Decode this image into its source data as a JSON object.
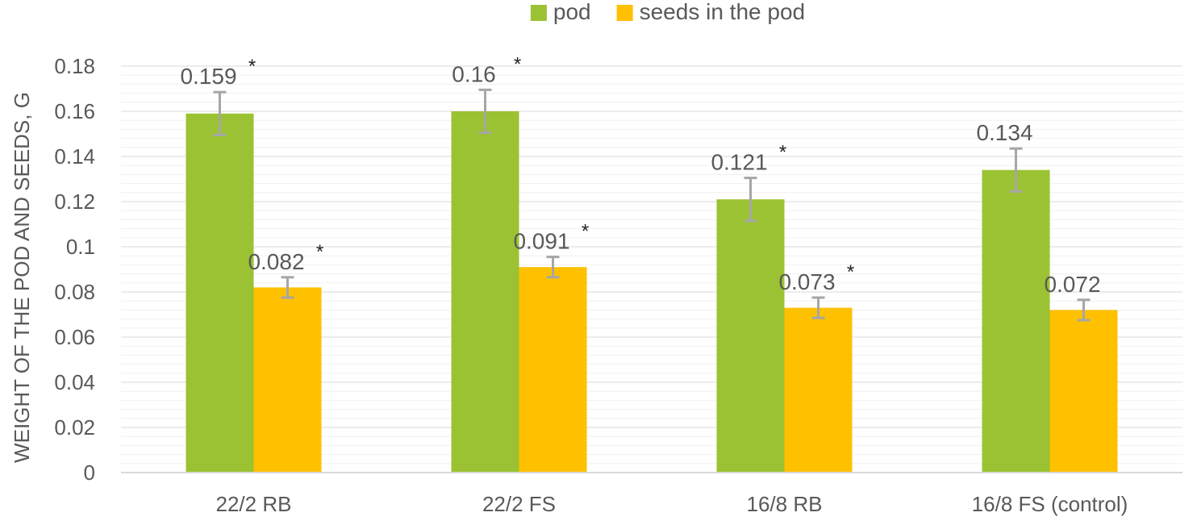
{
  "chart_data": {
    "type": "bar",
    "categories": [
      "22/2 RB",
      "22/2 FS",
      "16/8 RB",
      "16/8 FS (control)"
    ],
    "series": [
      {
        "name": "pod",
        "color": "#9BC232",
        "values": [
          0.159,
          0.16,
          0.121,
          0.134
        ],
        "data_labels": [
          "0.159",
          "0.16",
          "0.121",
          "0.134"
        ],
        "error": [
          0.0095,
          0.0095,
          0.0095,
          0.0095
        ],
        "significance": [
          "*",
          "*",
          "*",
          ""
        ]
      },
      {
        "name": "seeds in the pod",
        "color": "#FFC000",
        "values": [
          0.082,
          0.091,
          0.073,
          0.072
        ],
        "data_labels": [
          "0.082",
          "0.091",
          "0.073",
          "0.072"
        ],
        "error": [
          0.0045,
          0.0045,
          0.0045,
          0.0045
        ],
        "significance": [
          "*",
          "*",
          "*",
          ""
        ]
      }
    ],
    "ylabel": "WEIGHT OF THE POD AND SEEDS, G",
    "xlabel": "",
    "ylim": [
      0,
      0.18
    ],
    "yticks": [
      "0",
      "0.02",
      "0.04",
      "0.06",
      "0.08",
      "0.1",
      "0.12",
      "0.14",
      "0.16",
      "0.18"
    ],
    "grid": true,
    "legend": "top-center",
    "error_bar_color": "#A6A6A6",
    "grid_color": "#E6E6E6",
    "axis_color": "#D9D9D9"
  }
}
